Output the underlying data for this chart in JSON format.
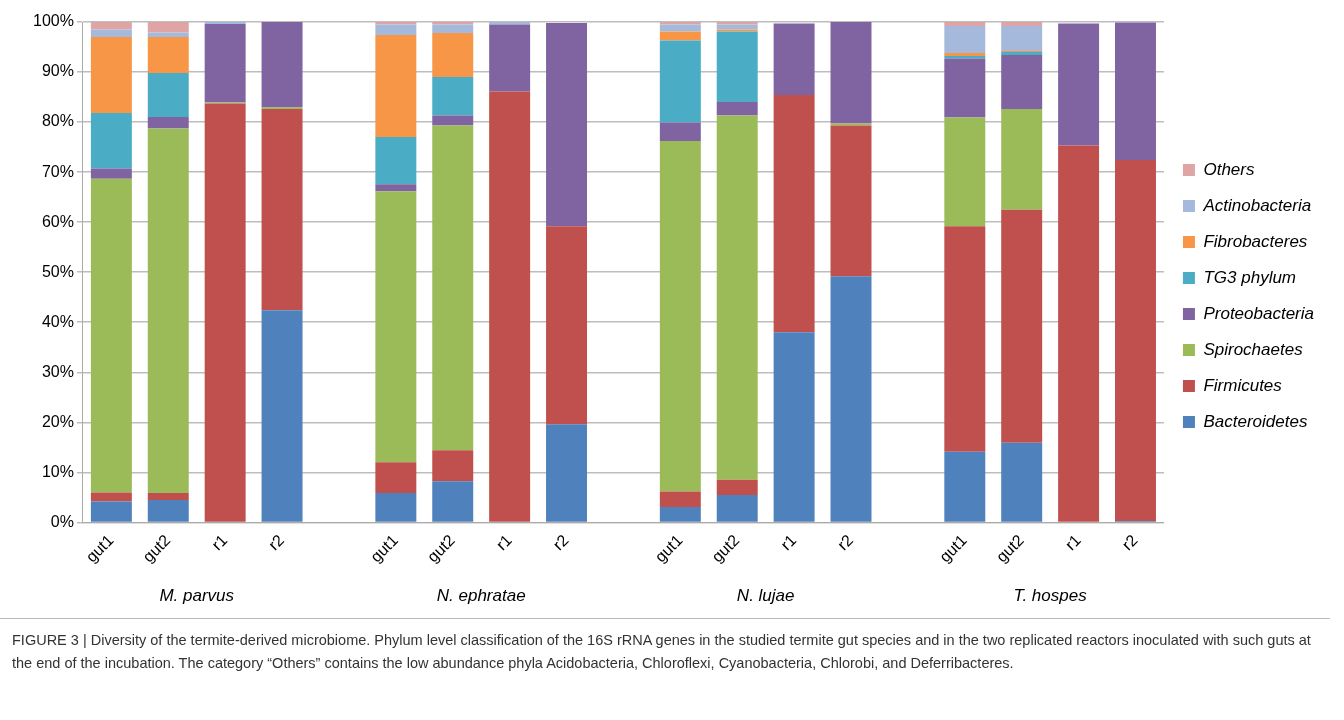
{
  "chart_data": {
    "type": "bar",
    "stacked": true,
    "legend": "right",
    "grid": "y",
    "categories": [
      "gut1",
      "gut2",
      "r1",
      "r2",
      null,
      "gut1",
      "gut2",
      "r1",
      "r2",
      null,
      "gut1",
      "gut2",
      "r1",
      "r2",
      null,
      "gut1",
      "gut2",
      "r1",
      "r2"
    ],
    "ylim": [
      0,
      100
    ],
    "yticks": [
      {
        "value": 0,
        "label": "0%"
      },
      {
        "value": 10,
        "label": "10%"
      },
      {
        "value": 20,
        "label": "20%"
      },
      {
        "value": 30,
        "label": "30%"
      },
      {
        "value": 40,
        "label": "40%"
      },
      {
        "value": 50,
        "label": "50%"
      },
      {
        "value": 60,
        "label": "60%"
      },
      {
        "value": 70,
        "label": "70%"
      },
      {
        "value": 80,
        "label": "80%"
      },
      {
        "value": 90,
        "label": "90%"
      },
      {
        "value": 100,
        "label": "100%"
      }
    ],
    "series": [
      {
        "name": "Bacteroidetes",
        "color": "#4f81bd",
        "values": [
          4.2,
          4.5,
          0,
          42.4,
          null,
          5.9,
          8.2,
          0,
          19.6,
          null,
          3.1,
          5.5,
          38.0,
          49.2,
          null,
          14.1,
          15.9,
          0,
          0.3
        ]
      },
      {
        "name": "Firmicutes",
        "color": "#c0504d",
        "values": [
          1.8,
          1.4,
          83.7,
          40.2,
          null,
          6.1,
          6.2,
          86.1,
          39.6,
          null,
          3.1,
          3.0,
          47.4,
          30.1,
          null,
          45.1,
          46.6,
          75.3,
          72.1
        ]
      },
      {
        "name": "Spirochaetes",
        "color": "#9bbb59",
        "values": [
          62.7,
          72.8,
          0.2,
          0.3,
          null,
          54.2,
          64.9,
          0,
          0,
          null,
          70.0,
          72.8,
          0,
          0.4,
          null,
          21.7,
          20.1,
          0,
          0
        ]
      },
      {
        "name": "Proteobacteria",
        "color": "#8064a2",
        "values": [
          2.0,
          2.3,
          15.7,
          17.1,
          null,
          1.4,
          2.0,
          13.4,
          40.6,
          null,
          3.7,
          2.7,
          14.3,
          20.3,
          null,
          11.8,
          10.8,
          24.4,
          27.5
        ]
      },
      {
        "name": "TG3 phylum",
        "color": "#4bacc6",
        "values": [
          11.1,
          8.8,
          0,
          0,
          null,
          9.4,
          7.7,
          0,
          0,
          null,
          16.4,
          14.1,
          0,
          0,
          null,
          0.5,
          0.6,
          0,
          0
        ]
      },
      {
        "name": "Fibrobacteres",
        "color": "#f79646",
        "values": [
          15.2,
          7.2,
          0,
          0,
          null,
          20.4,
          8.8,
          0,
          0,
          null,
          1.8,
          0.4,
          0,
          0,
          null,
          0.6,
          0.2,
          0,
          0
        ]
      },
      {
        "name": "Actinobacteria",
        "color": "#a5b9dc",
        "values": [
          1.5,
          0.9,
          0.4,
          0,
          null,
          2.1,
          1.7,
          0.5,
          0,
          null,
          1.4,
          1.0,
          null,
          0,
          null,
          5.4,
          5.0,
          0,
          0
        ]
      },
      {
        "name": "Others",
        "color": "#dea5a4",
        "values": [
          1.5,
          2.1,
          0,
          0,
          null,
          0.5,
          0.5,
          0,
          0,
          null,
          0.5,
          0.5,
          0,
          0,
          null,
          0.8,
          0.8,
          null,
          0
        ]
      }
    ],
    "annotations": [
      "M. parvus",
      "N. ephratae",
      "N. lujae",
      "T. hospes",
      "FIGURE 3 | Diversity of the termite-derived microbiome. Phylum level classification of the 16S rRNA genes in the studied termite gut species and in the two replicated reactors inoculated with such guts at the end of the incubation. The category “Others” contains the low abundance phyla Acidobacteria, Chloroflexi, Cyanobacteria, Chlorobi, and Deferribacteres."
    ]
  }
}
